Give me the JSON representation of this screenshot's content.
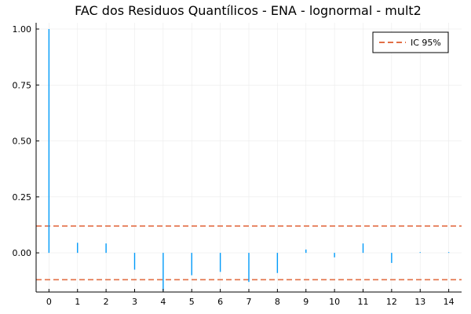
{
  "chart_data": {
    "type": "bar",
    "title": "FAC dos Residuos Quantílicos - ENA - lognormal - mult2",
    "xlabel": "",
    "ylabel": "",
    "x": [
      0,
      1,
      2,
      3,
      4,
      5,
      6,
      7,
      8,
      9,
      10,
      11,
      12,
      13,
      14
    ],
    "values": [
      1.0,
      0.045,
      0.042,
      -0.075,
      -0.17,
      -0.1,
      -0.085,
      -0.13,
      -0.09,
      0.015,
      -0.02,
      0.042,
      -0.045,
      0.003,
      0.003
    ],
    "xlim": [
      -0.45,
      14.45
    ],
    "ylim": [
      -0.175,
      1.028
    ],
    "yticks": [
      "0.00",
      "0.25",
      "0.50",
      "0.75",
      "1.00"
    ],
    "ytick_values": [
      0.0,
      0.25,
      0.5,
      0.75,
      1.0
    ],
    "xticks": [
      "0",
      "1",
      "2",
      "3",
      "4",
      "5",
      "6",
      "7",
      "8",
      "9",
      "10",
      "11",
      "12",
      "13",
      "14"
    ],
    "confidence_band": {
      "name": "IC 95%",
      "upper": 0.12,
      "lower": -0.12
    },
    "grid": true,
    "legend_position": "top-right",
    "colors": {
      "bars": "#009af9",
      "ci": "#e26f46",
      "axis": "#000000",
      "grid": "#ebebeb"
    }
  }
}
